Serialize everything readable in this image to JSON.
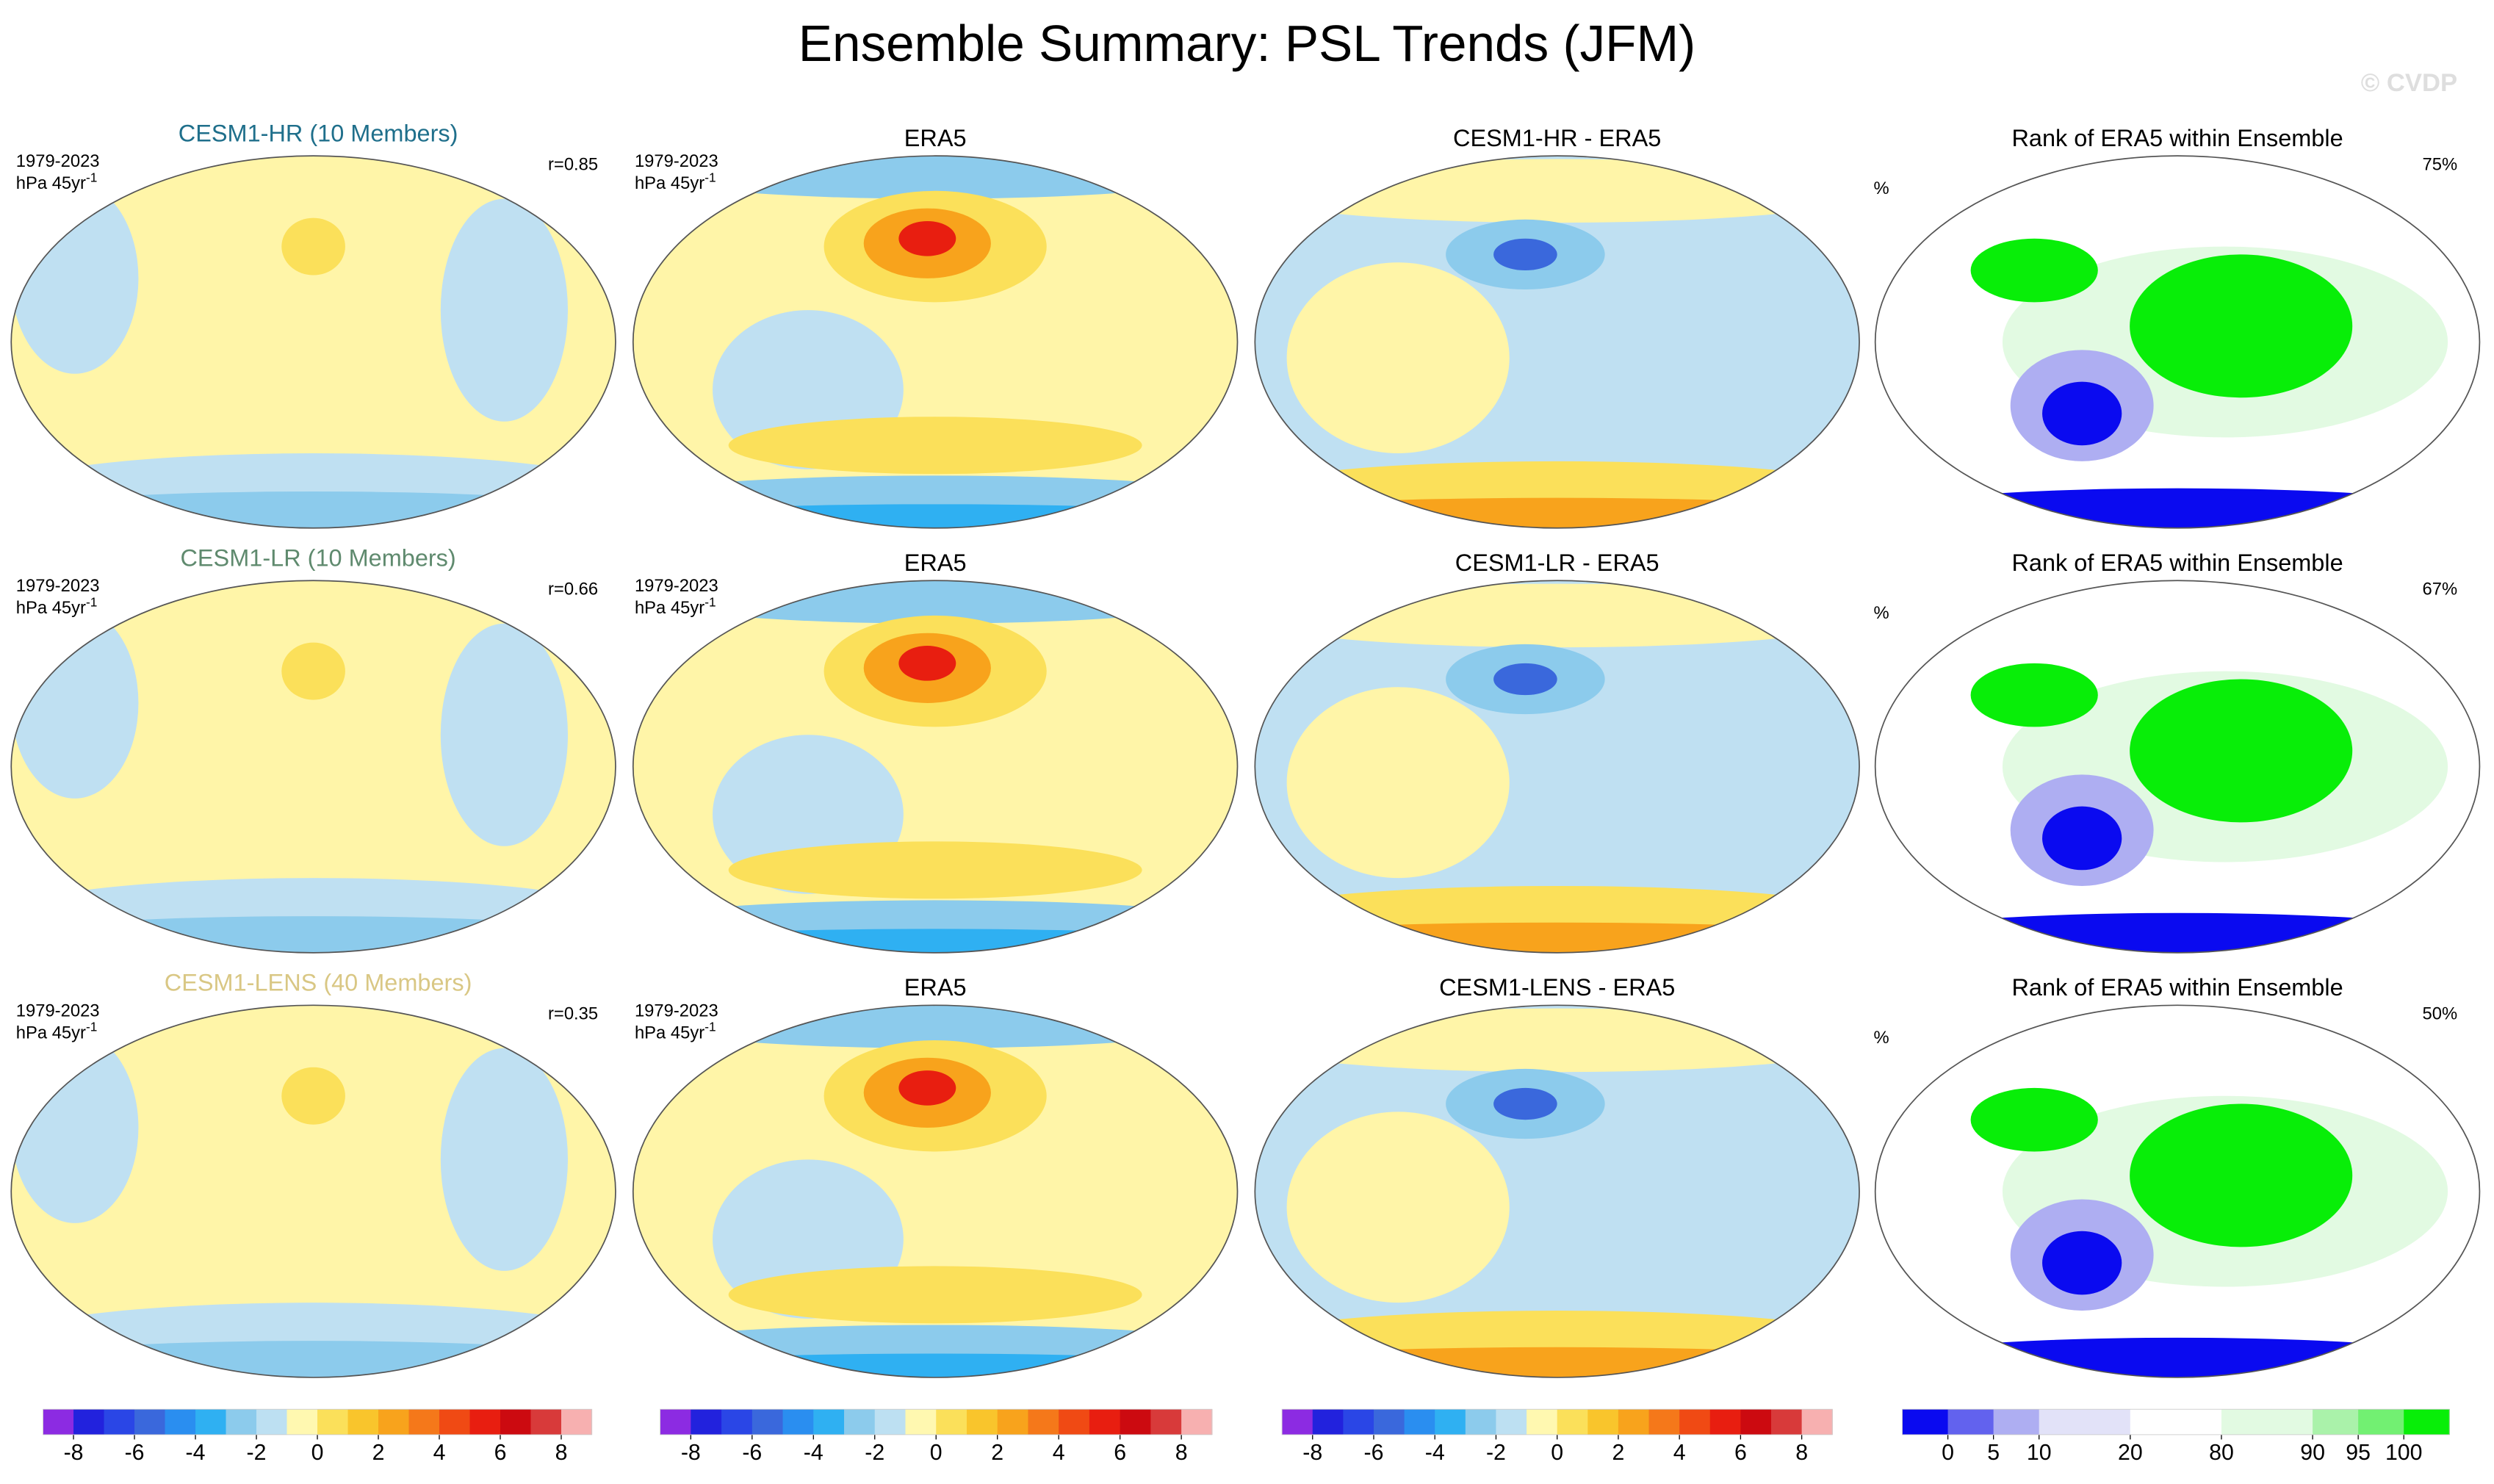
{
  "title": "Ensemble Summary: PSL Trends (JFM)",
  "watermark": "© CVDP",
  "rows": [
    {
      "model": "CESM1-HR (10 Members)",
      "model_color": "#1f6f8b",
      "period": "1979-2023",
      "units": "hPa 45yr",
      "units_exp": "-1",
      "stat": "r=0.85",
      "obs": "ERA5",
      "obs_period": "1979-2023",
      "obs_units": "hPa 45yr",
      "obs_units_exp": "-1",
      "diff": "CESM1-HR - ERA5",
      "rank": "Rank of ERA5 within Ensemble",
      "rank_unit": "%",
      "rank_stat": "75%"
    },
    {
      "model": "CESM1-LR (10 Members)",
      "model_color": "#5f8a6e",
      "period": "1979-2023",
      "units": "hPa 45yr",
      "units_exp": "-1",
      "stat": "r=0.66",
      "obs": "ERA5",
      "obs_period": "1979-2023",
      "obs_units": "hPa 45yr",
      "obs_units_exp": "-1",
      "diff": "CESM1-LR - ERA5",
      "rank": "Rank of ERA5 within Ensemble",
      "rank_unit": "%",
      "rank_stat": "67%"
    },
    {
      "model": "CESM1-LENS (40 Members)",
      "model_color": "#d9c784",
      "period": "1979-2023",
      "units": "hPa 45yr",
      "units_exp": "-1",
      "stat": "r=0.35",
      "obs": "ERA5",
      "obs_period": "1979-2023",
      "obs_units": "hPa 45yr",
      "obs_units_exp": "-1",
      "diff": "CESM1-LENS - ERA5",
      "rank": "Rank of ERA5 within Ensemble",
      "rank_unit": "%",
      "rank_stat": "50%"
    }
  ],
  "colorbars": [
    {
      "type": "linear",
      "range": [
        -9,
        9
      ],
      "ticks": [
        -8,
        -6,
        -4,
        -2,
        0,
        2,
        4,
        6,
        8
      ],
      "colors": [
        "#8c2be2",
        "#2222dd",
        "#2a46e6",
        "#3a68dc",
        "#2a8ef0",
        "#2fb0f2",
        "#8ccbec",
        "#bde0f2",
        "#fff8b0",
        "#fbe05a",
        "#f9c52c",
        "#f8a31c",
        "#f5781a",
        "#f04a14",
        "#e81e10",
        "#cc0a10",
        "#d83a3a",
        "#f7b0b0"
      ]
    },
    {
      "type": "linear",
      "range": [
        -9,
        9
      ],
      "ticks": [
        -8,
        -6,
        -4,
        -2,
        0,
        2,
        4,
        6,
        8
      ],
      "colors": [
        "#8c2be2",
        "#2222dd",
        "#2a46e6",
        "#3a68dc",
        "#2a8ef0",
        "#2fb0f2",
        "#8ccbec",
        "#bde0f2",
        "#fff8b0",
        "#fbe05a",
        "#f9c52c",
        "#f8a31c",
        "#f5781a",
        "#f04a14",
        "#e81e10",
        "#cc0a10",
        "#d83a3a",
        "#f7b0b0"
      ]
    },
    {
      "type": "linear",
      "range": [
        -9,
        9
      ],
      "ticks": [
        -8,
        -6,
        -4,
        -2,
        0,
        2,
        4,
        6,
        8
      ],
      "colors": [
        "#8c2be2",
        "#2222dd",
        "#2a46e6",
        "#3a68dc",
        "#2a8ef0",
        "#2fb0f2",
        "#8ccbec",
        "#bde0f2",
        "#fff8b0",
        "#fbe05a",
        "#f9c52c",
        "#f8a31c",
        "#f5781a",
        "#f04a14",
        "#e81e10",
        "#cc0a10",
        "#d83a3a",
        "#f7b0b0"
      ]
    },
    {
      "type": "boundaries",
      "ticks": [
        0,
        5,
        10,
        20,
        80,
        90,
        95,
        100
      ],
      "colors": [
        "#0a0af0",
        "#6262ee",
        "#aeaef2",
        "#e2e2f8",
        "#ffffff",
        "#e2fae2",
        "#aaf2aa",
        "#72f072",
        "#08ee08"
      ]
    }
  ]
}
